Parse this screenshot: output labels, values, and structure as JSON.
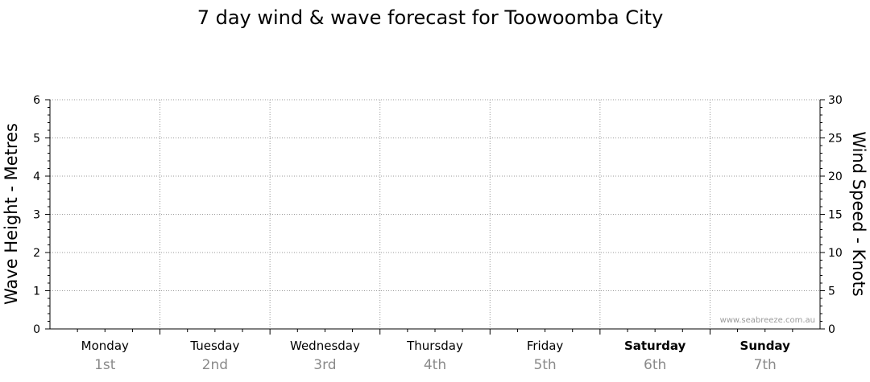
{
  "chart_data": {
    "type": "line",
    "title": "7 day wind & wave forecast for Toowoomba City",
    "ylabel_left": "Wave Height - Metres",
    "ylabel_right": "Wind Speed - Knots",
    "ylim_left": [
      0,
      6
    ],
    "ylim_right": [
      0,
      30
    ],
    "yticks_left": [
      "0",
      "1",
      "2",
      "3",
      "4",
      "5",
      "6"
    ],
    "yticks_right": [
      "0",
      "5",
      "10",
      "15",
      "20",
      "25",
      "30"
    ],
    "days": [
      {
        "day": "Monday",
        "date": "1st",
        "weekend": false
      },
      {
        "day": "Tuesday",
        "date": "2nd",
        "weekend": false
      },
      {
        "day": "Wednesday",
        "date": "3rd",
        "weekend": false
      },
      {
        "day": "Thursday",
        "date": "4th",
        "weekend": false
      },
      {
        "day": "Friday",
        "date": "5th",
        "weekend": false
      },
      {
        "day": "Saturday",
        "date": "6th",
        "weekend": true
      },
      {
        "day": "Sunday",
        "date": "7th",
        "weekend": true
      }
    ],
    "series": [],
    "grid": true,
    "watermark": "www.seabreeze.com.au",
    "colors": {
      "axis": "#000000",
      "grid": "#9a9a9a",
      "date_text": "#8a8a8a",
      "watermark": "#9a9a9a"
    }
  }
}
